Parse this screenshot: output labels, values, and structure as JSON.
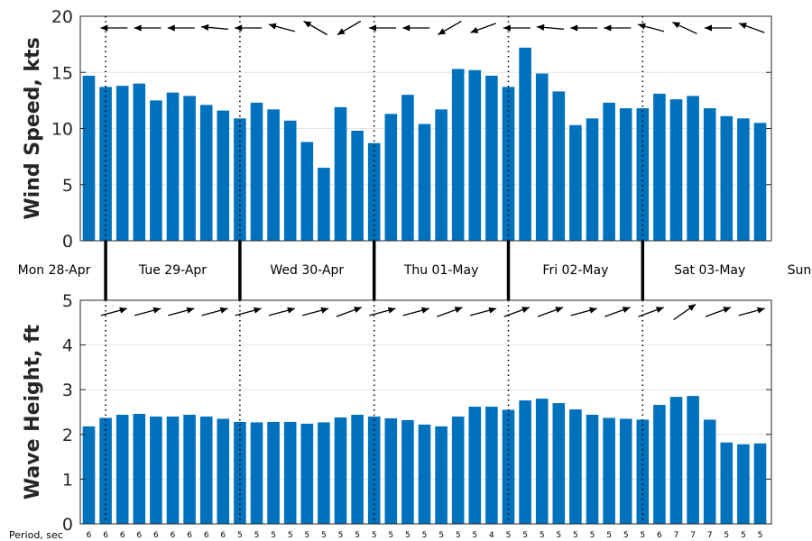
{
  "colors": {
    "bar": "#0072bd",
    "axis": "#262626",
    "divider": "#000000"
  },
  "days": [
    "Mon 28-Apr",
    "Tue 29-Apr",
    "Wed 30-Apr",
    "Thu 01-May",
    "Fri 02-May",
    "Sat 03-May",
    "Sun"
  ],
  "period_title": "Period, sec",
  "chart_data": [
    {
      "type": "bar",
      "ylabel": "Wind Speed, kts",
      "ylim": [
        0,
        20
      ],
      "yticks": [
        0,
        5,
        10,
        15,
        20
      ],
      "values": [
        14.7,
        13.7,
        13.8,
        14.0,
        12.5,
        13.2,
        12.9,
        12.1,
        11.6,
        10.9,
        12.3,
        11.7,
        10.7,
        8.8,
        6.5,
        11.9,
        9.8,
        8.7,
        11.3,
        13.0,
        10.4,
        11.7,
        15.3,
        15.2,
        14.7,
        13.7,
        17.2,
        14.9,
        13.3,
        10.3,
        10.9,
        12.3,
        11.8,
        11.8,
        13.1,
        12.6,
        12.9,
        11.8,
        11.1,
        10.9,
        10.5
      ],
      "direction_deg": [
        170,
        180,
        180,
        180,
        180,
        180,
        175,
        175,
        175,
        180,
        170,
        165,
        160,
        150,
        200,
        210,
        200,
        180,
        180,
        180,
        200,
        210,
        205,
        200,
        190,
        180,
        160,
        175,
        180,
        180,
        175,
        180,
        180,
        165,
        160,
        155,
        180,
        180,
        180,
        160,
        150
      ],
      "grid": true
    },
    {
      "type": "bar",
      "ylabel": "Wave Height, ft",
      "ylim": [
        0,
        5
      ],
      "yticks": [
        0,
        1,
        2,
        3,
        4,
        5
      ],
      "values": [
        2.18,
        2.37,
        2.44,
        2.46,
        2.4,
        2.4,
        2.44,
        2.4,
        2.35,
        2.28,
        2.27,
        2.28,
        2.28,
        2.24,
        2.27,
        2.38,
        2.44,
        2.4,
        2.36,
        2.32,
        2.22,
        2.18,
        2.4,
        2.62,
        2.62,
        2.55,
        2.76,
        2.8,
        2.7,
        2.56,
        2.44,
        2.37,
        2.35,
        2.33,
        2.66,
        2.84,
        2.86,
        2.33,
        1.82,
        1.78,
        1.8
      ],
      "direction_deg": [
        20,
        15,
        15,
        15,
        20,
        15,
        15,
        15,
        15,
        15,
        15,
        15,
        20,
        15,
        20,
        20,
        20,
        15,
        15,
        15,
        15,
        20,
        20,
        15,
        20,
        20,
        25,
        20,
        20,
        15,
        20,
        20,
        15,
        20,
        25,
        35,
        30,
        20,
        25,
        15,
        10
      ],
      "periods": [
        6,
        6,
        6,
        6,
        6,
        6,
        6,
        6,
        6,
        5,
        5,
        5,
        5,
        5,
        5,
        5,
        5,
        5,
        5,
        5,
        5,
        5,
        5,
        5,
        4,
        5,
        5,
        5,
        5,
        5,
        5,
        5,
        5,
        5,
        6,
        7,
        7,
        7,
        5,
        5,
        5
      ],
      "grid": true
    }
  ]
}
